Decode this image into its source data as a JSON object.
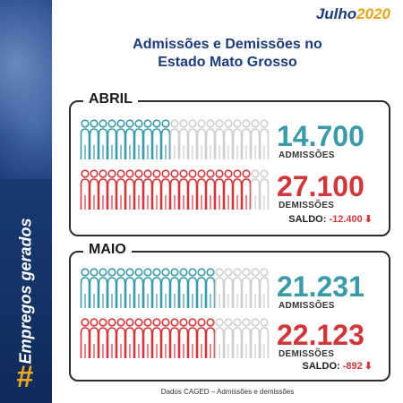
{
  "brand": {
    "month": "Julho",
    "year": "2020"
  },
  "title_line1": "Admissões e Demissões no",
  "title_line2": "Estado Mato Grosso",
  "sidebar": {
    "vertical_text": "Empregos gerados",
    "hash_symbol": "#"
  },
  "colors": {
    "admissoes": "#3b9aa8",
    "demissoes": "#d0373b",
    "inactive": "#cfcfcf",
    "navy": "#1b3c7a",
    "gold": "#e8a418"
  },
  "panels": [
    {
      "label": "ABRIL",
      "admissoes_value": "14.700",
      "admissoes_label": "ADMISSÕES",
      "demissoes_value": "27.100",
      "demissoes_label": "DEMISSÕES",
      "saldo_label": "SALDO:",
      "saldo_value": "-12.400"
    },
    {
      "label": "MAIO",
      "admissoes_value": "21.231",
      "admissoes_label": "ADMISSÕES",
      "demissoes_value": "22.123",
      "demissoes_label": "DEMISSÕES",
      "saldo_label": "SALDO:",
      "saldo_value": "-892"
    }
  ],
  "footer": "Dados CAGED – Admissões e demissões",
  "chart_data": [
    {
      "type": "bar",
      "title": "ABRIL",
      "categories": [
        "ADMISSÕES",
        "DEMISSÕES"
      ],
      "values": [
        14700,
        27100
      ],
      "saldo": -12400
    },
    {
      "type": "bar",
      "title": "MAIO",
      "categories": [
        "ADMISSÕES",
        "DEMISSÕES"
      ],
      "values": [
        21231,
        22123
      ],
      "saldo": -892
    }
  ]
}
